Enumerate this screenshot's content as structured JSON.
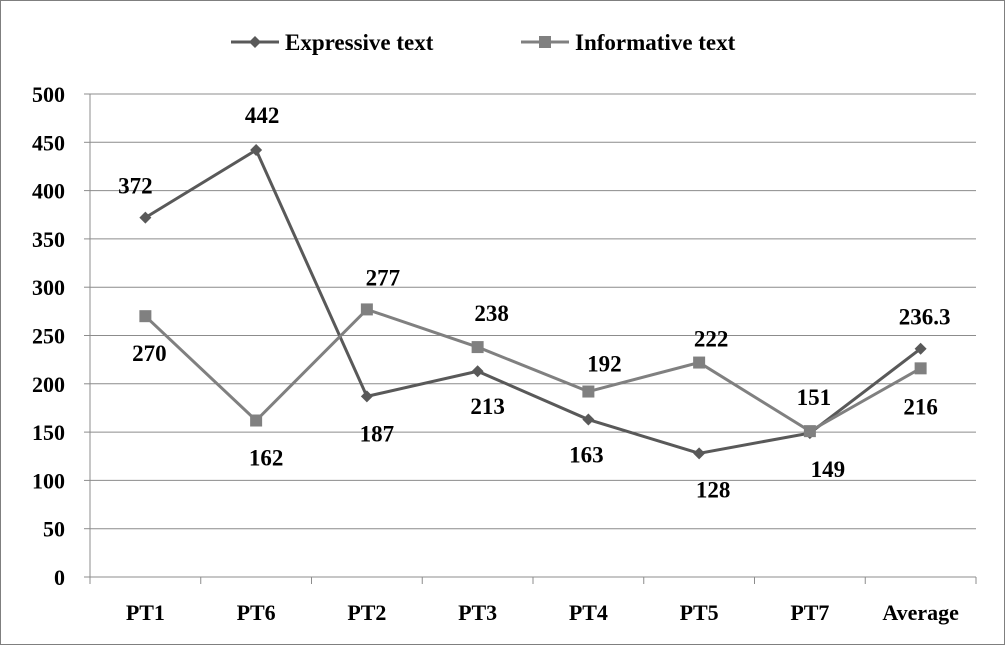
{
  "chart_data": {
    "type": "line",
    "title": "",
    "xlabel": "",
    "ylabel": "",
    "categories": [
      "PT1",
      "PT6",
      "PT2",
      "PT3",
      "PT4",
      "PT5",
      "PT7",
      "Average"
    ],
    "ylim": [
      0,
      500
    ],
    "yticks": [
      "0",
      "50",
      "100",
      "150",
      "200",
      "250",
      "300",
      "350",
      "400",
      "450",
      "500"
    ],
    "grid": true,
    "legend_position": "top",
    "series": [
      {
        "name": "Expressive text",
        "marker": "diamond",
        "color": "#595959",
        "values": [
          372,
          442,
          187,
          213,
          163,
          128,
          149,
          236.3
        ],
        "labels": [
          "372",
          "442",
          "187",
          "213",
          "163",
          "128",
          "149",
          "236.3"
        ]
      },
      {
        "name": "Informative text",
        "marker": "square",
        "color": "#808080",
        "values": [
          270,
          162,
          277,
          238,
          192,
          222,
          151,
          216
        ],
        "labels": [
          "270",
          "162",
          "277",
          "238",
          "192",
          "222",
          "151",
          "216"
        ]
      }
    ]
  }
}
